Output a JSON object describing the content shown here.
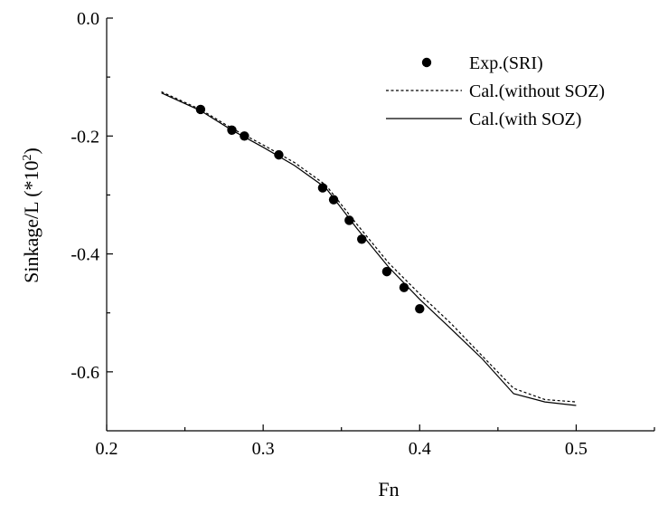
{
  "chart_data": {
    "type": "line",
    "xlabel": "Fn",
    "ylabel": "Sinkage/L (*10²)",
    "xlim": [
      0.2,
      0.55
    ],
    "ylim": [
      -0.7,
      0.0
    ],
    "xticks": [
      0.2,
      0.3,
      0.4,
      0.5
    ],
    "xtick_labels": [
      "0.2",
      "0.3",
      "0.4",
      "0.5"
    ],
    "yticks": [
      0.0,
      -0.2,
      -0.4,
      -0.6
    ],
    "ytick_labels": [
      "0.0",
      "-0.2",
      "-0.4",
      "-0.6"
    ],
    "grid": false,
    "legend_position": "top-right",
    "series": [
      {
        "name": "Exp.(SRI)",
        "style": "markers",
        "marker": "filled-circle",
        "color": "#000000",
        "x": [
          0.26,
          0.28,
          0.288,
          0.31,
          0.338,
          0.345,
          0.355,
          0.363,
          0.379,
          0.39,
          0.4
        ],
        "y": [
          -0.155,
          -0.19,
          -0.2,
          -0.232,
          -0.288,
          -0.308,
          -0.343,
          -0.375,
          -0.43,
          -0.457,
          -0.493
        ]
      },
      {
        "name": "Cal.(without SOZ)",
        "style": "dashed-line",
        "color": "#000000",
        "x": [
          0.235,
          0.26,
          0.28,
          0.3,
          0.32,
          0.34,
          0.36,
          0.38,
          0.4,
          0.42,
          0.44,
          0.46,
          0.48,
          0.5
        ],
        "y": [
          -0.125,
          -0.155,
          -0.187,
          -0.215,
          -0.245,
          -0.283,
          -0.35,
          -0.415,
          -0.468,
          -0.518,
          -0.573,
          -0.628,
          -0.647,
          -0.651
        ]
      },
      {
        "name": "Cal.(with SOZ)",
        "style": "solid-line",
        "color": "#000000",
        "x": [
          0.235,
          0.26,
          0.28,
          0.3,
          0.32,
          0.34,
          0.36,
          0.38,
          0.4,
          0.42,
          0.44,
          0.46,
          0.48,
          0.5
        ],
        "y": [
          -0.127,
          -0.157,
          -0.19,
          -0.219,
          -0.25,
          -0.288,
          -0.357,
          -0.422,
          -0.477,
          -0.527,
          -0.578,
          -0.637,
          -0.651,
          -0.657
        ]
      }
    ]
  }
}
